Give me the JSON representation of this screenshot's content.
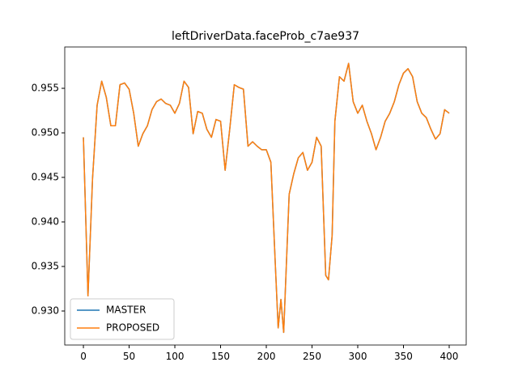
{
  "chart_data": {
    "type": "line",
    "title": "leftDriverData.faceProb_c7ae937",
    "x": [
      0,
      5,
      10,
      15,
      20,
      25,
      30,
      35,
      40,
      45,
      50,
      55,
      60,
      65,
      70,
      75,
      80,
      85,
      90,
      95,
      100,
      105,
      110,
      115,
      120,
      125,
      130,
      135,
      140,
      145,
      150,
      155,
      160,
      165,
      170,
      175,
      180,
      185,
      190,
      195,
      200,
      205,
      210,
      213,
      216,
      219,
      225,
      230,
      235,
      240,
      245,
      250,
      255,
      260,
      265,
      268,
      272,
      275,
      280,
      285,
      290,
      295,
      300,
      305,
      310,
      315,
      320,
      325,
      330,
      335,
      340,
      345,
      350,
      355,
      360,
      365,
      370,
      375,
      380,
      385,
      390,
      395,
      400
    ],
    "series": [
      {
        "name": "MASTER",
        "color": "#1f77b4",
        "values": [
          0.9495,
          0.9317,
          0.9449,
          0.9531,
          0.9558,
          0.954,
          0.9508,
          0.9508,
          0.9554,
          0.9556,
          0.9549,
          0.9522,
          0.9485,
          0.9499,
          0.9508,
          0.9526,
          0.9535,
          0.9538,
          0.9533,
          0.9531,
          0.9522,
          0.9533,
          0.9558,
          0.9551,
          0.9499,
          0.9524,
          0.9522,
          0.9504,
          0.9495,
          0.9515,
          0.9513,
          0.9458,
          0.9504,
          0.9554,
          0.9551,
          0.9549,
          0.9485,
          0.949,
          0.9485,
          0.9481,
          0.9481,
          0.9467,
          0.9349,
          0.9281,
          0.9313,
          0.9276,
          0.9431,
          0.9454,
          0.9472,
          0.9478,
          0.9458,
          0.9467,
          0.9495,
          0.9485,
          0.934,
          0.9335,
          0.9385,
          0.9513,
          0.9563,
          0.9558,
          0.9578,
          0.9535,
          0.9522,
          0.9531,
          0.9513,
          0.9499,
          0.9481,
          0.9495,
          0.9513,
          0.9522,
          0.9535,
          0.9554,
          0.9567,
          0.9572,
          0.9563,
          0.9535,
          0.9522,
          0.9517,
          0.9504,
          0.9493,
          0.9499,
          0.9526,
          0.9522
        ]
      },
      {
        "name": "PROPOSED",
        "color": "#ff7f0e",
        "values": [
          0.9495,
          0.9317,
          0.9449,
          0.9531,
          0.9558,
          0.954,
          0.9508,
          0.9508,
          0.9554,
          0.9556,
          0.9549,
          0.9522,
          0.9485,
          0.9499,
          0.9508,
          0.9526,
          0.9535,
          0.9538,
          0.9533,
          0.9531,
          0.9522,
          0.9533,
          0.9558,
          0.9551,
          0.9499,
          0.9524,
          0.9522,
          0.9504,
          0.9495,
          0.9515,
          0.9513,
          0.9458,
          0.9504,
          0.9554,
          0.9551,
          0.9549,
          0.9485,
          0.949,
          0.9485,
          0.9481,
          0.9481,
          0.9467,
          0.9349,
          0.9281,
          0.9313,
          0.9276,
          0.9431,
          0.9454,
          0.9472,
          0.9478,
          0.9458,
          0.9467,
          0.9495,
          0.9485,
          0.934,
          0.9335,
          0.9385,
          0.9513,
          0.9563,
          0.9558,
          0.9578,
          0.9535,
          0.9522,
          0.9531,
          0.9513,
          0.9499,
          0.9481,
          0.9495,
          0.9513,
          0.9522,
          0.9535,
          0.9554,
          0.9567,
          0.9572,
          0.9563,
          0.9535,
          0.9522,
          0.9517,
          0.9504,
          0.9493,
          0.9499,
          0.9526,
          0.9522
        ]
      }
    ],
    "xlim": [
      -20.4,
      418.6
    ],
    "ylim": [
      0.92618,
      0.95964
    ],
    "xticks": [
      0,
      50,
      100,
      150,
      200,
      250,
      300,
      350,
      400
    ],
    "yticks": [
      {
        "value": 0.93,
        "label": "0.930"
      },
      0.935,
      {
        "value": 0.94,
        "label": "0.940"
      },
      0.945,
      {
        "value": 0.95,
        "label": "0.950"
      },
      0.955
    ],
    "legend": "lower left"
  }
}
